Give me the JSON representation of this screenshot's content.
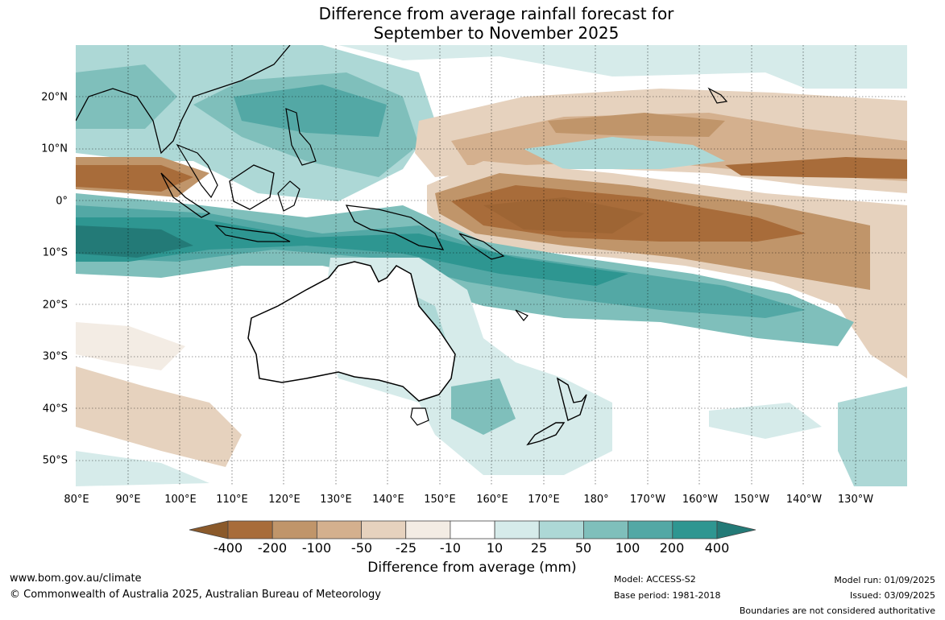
{
  "title_line1": "Difference from average rainfall forecast for",
  "title_line2": "September to November 2025",
  "lon_labels": [
    "80°E",
    "90°E",
    "100°E",
    "110°E",
    "120°E",
    "130°E",
    "140°E",
    "150°E",
    "160°E",
    "170°E",
    "180°",
    "170°W",
    "160°W",
    "150°W",
    "140°W",
    "130°W"
  ],
  "lat_labels": [
    "20°N",
    "10°N",
    "0°",
    "10°S",
    "20°S",
    "30°S",
    "40°S",
    "50°S"
  ],
  "legend": {
    "title": "Difference from average (mm)",
    "tick_labels": [
      "-400",
      "-200",
      "-100",
      "-50",
      "-25",
      "-10",
      "10",
      "25",
      "50",
      "100",
      "200",
      "400"
    ],
    "colors": [
      "#8b5a2b",
      "#a86c3a",
      "#c0956a",
      "#d4b08e",
      "#e6d2be",
      "#f3ece4",
      "#ffffff",
      "#d6ebea",
      "#add8d6",
      "#7fbfbb",
      "#53a8a5",
      "#2e9691",
      "#237a77"
    ]
  },
  "footer": {
    "website": "www.bom.gov.au/climate",
    "copyright": "© Commonwealth of Australia 2025, Australian Bureau of Meteorology",
    "model": "Model: ACCESS-S2",
    "base_period": "Base period: 1981-2018",
    "model_run": "Model run: 01/09/2025",
    "issued": "Issued: 03/09/2025",
    "disclaimer": "Boundaries are not considered authoritative"
  }
}
